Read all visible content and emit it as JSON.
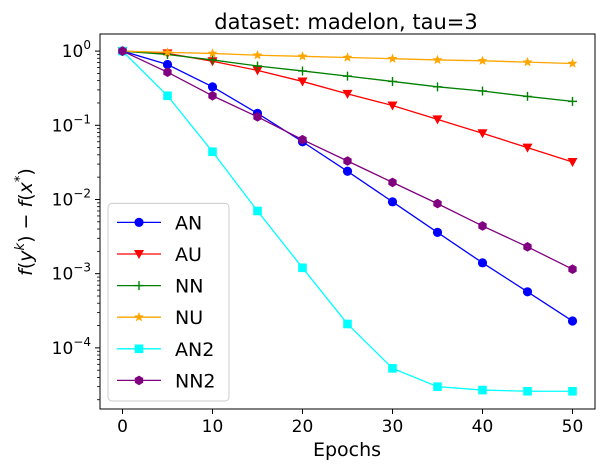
{
  "chart_data": {
    "type": "line",
    "title": "dataset: madelon, tau=3",
    "xlabel": "Epochs",
    "ylabel": "f(y^k) − f(x*)",
    "yscale": "log",
    "xlim": [
      -2.5,
      52.5
    ],
    "ylim": [
      1.5e-05,
      1.7
    ],
    "xticks": [
      0,
      10,
      20,
      30,
      40,
      50
    ],
    "xtick_labels": [
      "0",
      "10",
      "20",
      "30",
      "40",
      "50"
    ],
    "yticks": [
      0.0001,
      0.001,
      0.01,
      0.1,
      1
    ],
    "ytick_labels": [
      {
        "base": "10",
        "exp": "−4"
      },
      {
        "base": "10",
        "exp": "−3"
      },
      {
        "base": "10",
        "exp": "−2"
      },
      {
        "base": "10",
        "exp": "−1"
      },
      {
        "base": "10",
        "exp": "0"
      }
    ],
    "legend_position": "lower-left",
    "x": [
      0,
      5,
      10,
      15,
      20,
      25,
      30,
      35,
      40,
      45,
      50
    ],
    "series": [
      {
        "name": "AN",
        "color": "#0000ff",
        "marker": "circle",
        "values": [
          1.0,
          0.66,
          0.33,
          0.145,
          0.06,
          0.024,
          0.0093,
          0.0036,
          0.0014,
          0.00057,
          0.00023
        ]
      },
      {
        "name": "AU",
        "color": "#ff0000",
        "marker": "triangle-down",
        "values": [
          1.0,
          0.93,
          0.73,
          0.55,
          0.39,
          0.265,
          0.185,
          0.12,
          0.078,
          0.05,
          0.032
        ]
      },
      {
        "name": "NN",
        "color": "#008000",
        "marker": "plus",
        "values": [
          1.0,
          0.9,
          0.76,
          0.63,
          0.54,
          0.46,
          0.39,
          0.33,
          0.29,
          0.245,
          0.21
        ]
      },
      {
        "name": "NU",
        "color": "#ffa500",
        "marker": "star",
        "values": [
          1.0,
          0.96,
          0.93,
          0.88,
          0.85,
          0.82,
          0.79,
          0.76,
          0.74,
          0.71,
          0.68
        ]
      },
      {
        "name": "AN2",
        "color": "#00ffff",
        "marker": "square",
        "values": [
          1.0,
          0.25,
          0.044,
          0.007,
          0.0012,
          0.00021,
          5.3e-05,
          3e-05,
          2.7e-05,
          2.6e-05,
          2.6e-05
        ]
      },
      {
        "name": "NN2",
        "color": "#800080",
        "marker": "hexagon",
        "values": [
          1.0,
          0.52,
          0.25,
          0.13,
          0.064,
          0.033,
          0.017,
          0.0088,
          0.0044,
          0.0023,
          0.00115
        ]
      }
    ]
  }
}
